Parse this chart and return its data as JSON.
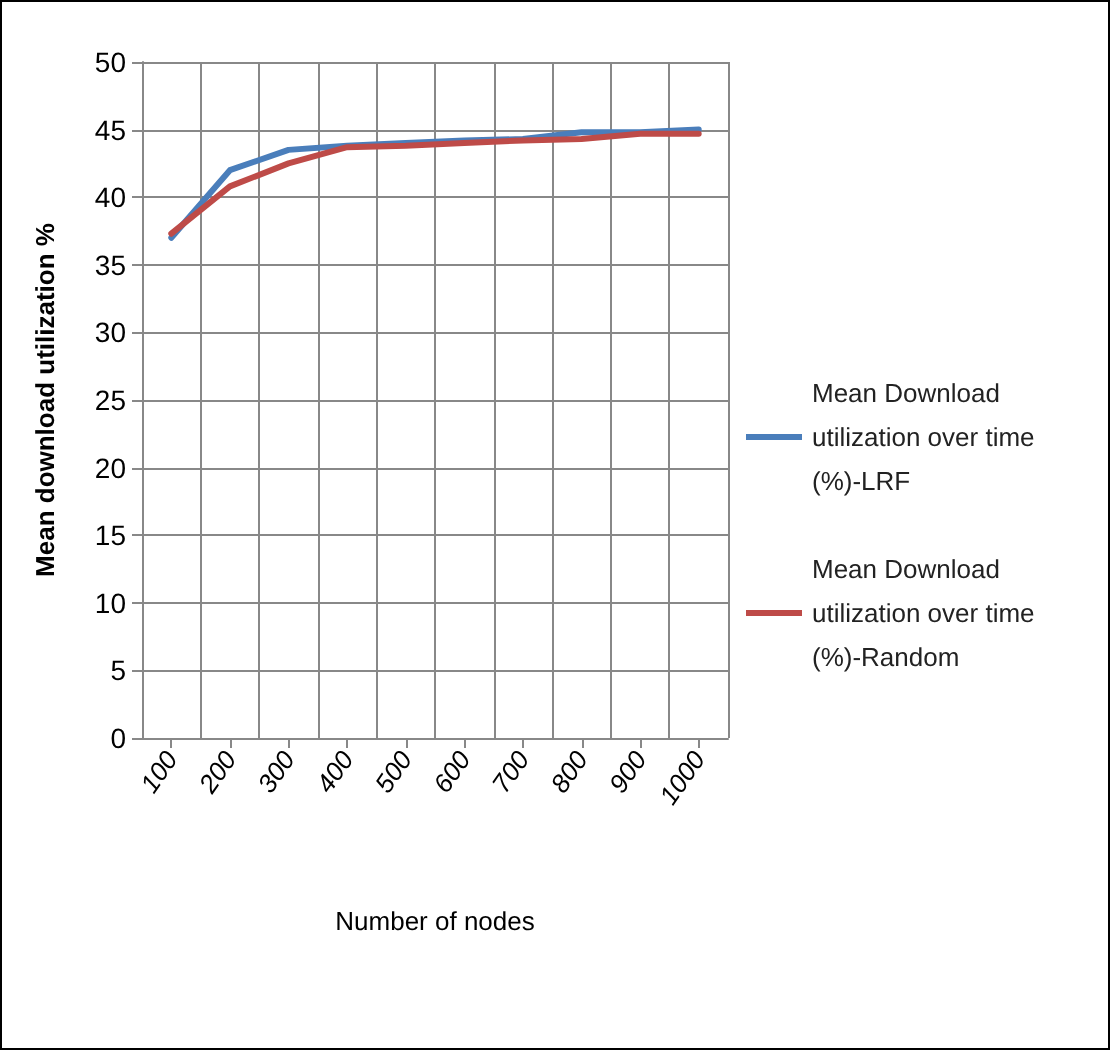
{
  "chart_data": {
    "type": "line",
    "xlabel": "Number of nodes",
    "ylabel": "Mean download utilization %",
    "categories": [
      "100",
      "200",
      "300",
      "400",
      "500",
      "600",
      "700",
      "800",
      "900",
      "1000"
    ],
    "series": [
      {
        "name": "Mean Download utilization over time (%)-LRF",
        "color": "#4a7ebb",
        "values": [
          37,
          42,
          43.5,
          43.8,
          44,
          44.2,
          44.3,
          44.8,
          44.8,
          45
        ]
      },
      {
        "name": "Mean Download utilization over time (%)-Random",
        "color": "#be4b48",
        "values": [
          37.3,
          40.8,
          42.5,
          43.7,
          43.8,
          44,
          44.2,
          44.3,
          44.7,
          44.7
        ]
      }
    ],
    "ylim": [
      0,
      50
    ],
    "yticks": [
      0,
      5,
      10,
      15,
      20,
      25,
      30,
      35,
      40,
      45,
      50
    ],
    "grid": true,
    "legend": "right",
    "marker": "none",
    "line_style": "solid"
  }
}
